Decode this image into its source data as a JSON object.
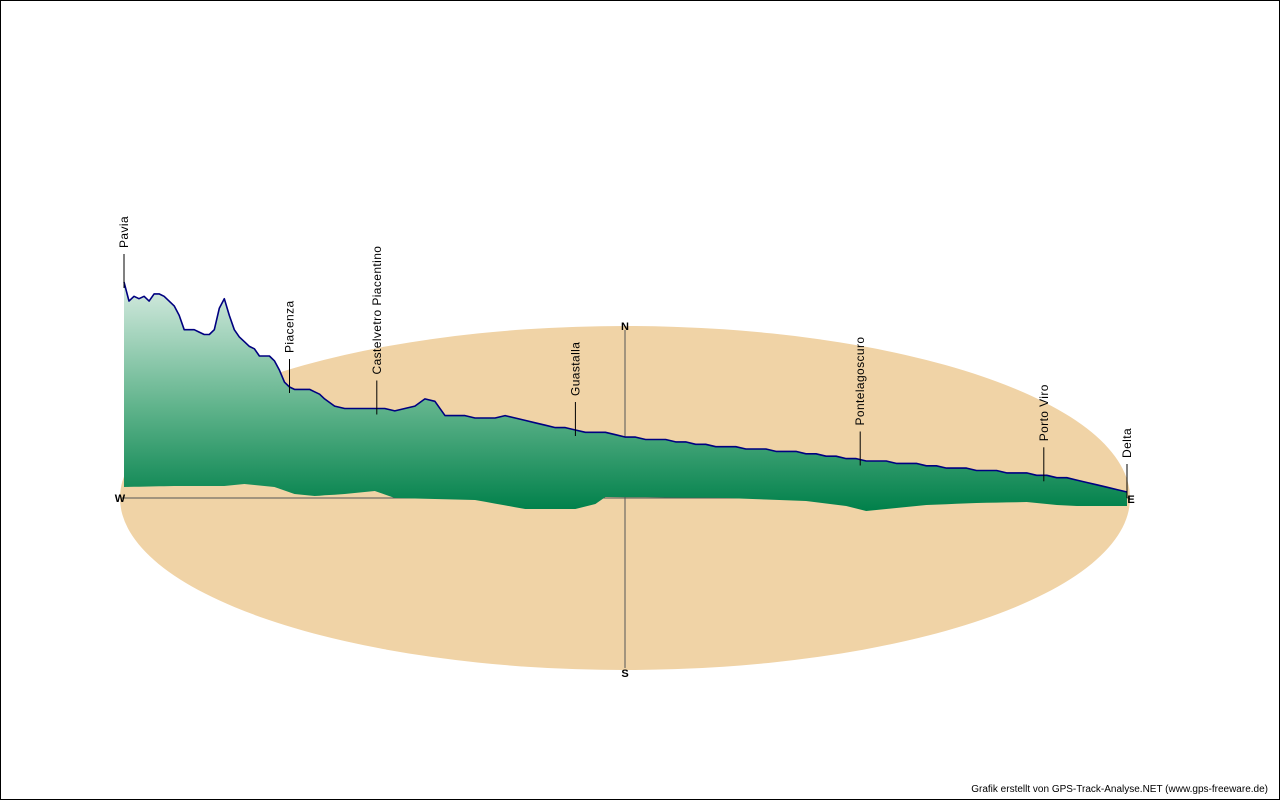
{
  "chart_data": {
    "type": "area",
    "title": "",
    "xlabel": "",
    "ylabel": "",
    "compass": {
      "north": "N",
      "south": "S",
      "west": "W",
      "east": "E"
    },
    "series": [
      {
        "x": [
          0,
          0.5,
          1,
          1.5,
          2,
          2.5,
          3,
          3.5,
          4,
          4.5,
          5,
          5.5,
          6,
          6.5,
          7,
          7.5,
          8,
          8.5,
          9,
          9.5,
          10,
          10.5,
          11,
          11.5,
          12,
          12.5,
          13,
          13.5,
          14,
          14.5,
          15,
          15.5,
          16,
          16.5,
          17,
          17.5,
          18,
          18.5,
          19,
          19.5,
          20,
          21,
          22,
          23,
          24,
          25,
          26,
          27,
          28,
          29,
          30,
          31,
          32,
          33,
          34,
          35,
          36,
          37,
          38,
          39,
          40,
          41,
          42,
          43,
          44,
          45,
          46,
          47,
          48,
          49,
          50,
          51,
          52,
          53,
          54,
          55,
          56,
          57,
          58,
          59,
          60,
          61,
          62,
          63,
          64,
          65,
          66,
          67,
          68,
          69,
          70,
          71,
          72,
          73,
          74,
          75,
          76,
          77,
          78,
          79,
          80,
          81,
          82,
          83,
          84,
          85,
          86,
          87,
          88,
          89,
          90,
          91,
          92,
          93,
          94,
          95,
          96,
          97,
          98,
          99,
          100
        ],
        "elevation": [
          100,
          92,
          94,
          93,
          94,
          92,
          95,
          95,
          94,
          92,
          90,
          86,
          80,
          80,
          80,
          79,
          78,
          78,
          80,
          89,
          93,
          86,
          80,
          77,
          75,
          73,
          72,
          69,
          69,
          69,
          67,
          63,
          58,
          56,
          55,
          55,
          55,
          55,
          54,
          53,
          51,
          48,
          47,
          47,
          47,
          47,
          47,
          46,
          47,
          48,
          51,
          50,
          44,
          44,
          44,
          43,
          43,
          43,
          44,
          43,
          42,
          41,
          40,
          39,
          39,
          38,
          37,
          37,
          37,
          36,
          35,
          35,
          34,
          34,
          34,
          33,
          33,
          32,
          32,
          31,
          31,
          31,
          30,
          30,
          30,
          29,
          29,
          29,
          28,
          28,
          27,
          27,
          26,
          26,
          25,
          25,
          25,
          24,
          24,
          24,
          23,
          23,
          22,
          22,
          22,
          21,
          21,
          21,
          20,
          20,
          20,
          19,
          19,
          18,
          18,
          17,
          16,
          15,
          14,
          13,
          12
        ]
      }
    ],
    "xlim": [
      0,
      100
    ],
    "legend": "none",
    "grid": false,
    "annotations": [
      {
        "label": "Pavia",
        "x": 0
      },
      {
        "label": "Piacenza",
        "x": 16.5
      },
      {
        "label": "Castelvetro Piacentino",
        "x": 25.2
      },
      {
        "label": "Guastalla",
        "x": 45.0
      },
      {
        "label": "Pontelagoscuro",
        "x": 73.4
      },
      {
        "label": "Porto Viro",
        "x": 91.7
      },
      {
        "label": "Delta",
        "x": 100
      }
    ],
    "colors": {
      "ellipse": "#f0d3a6",
      "fill_top": "#d8ece2",
      "fill_bottom": "#00804a",
      "line": "#000080"
    }
  },
  "credit": "Grafik erstellt von GPS-Track-Analyse.NET (www.gps-freeware.de)"
}
